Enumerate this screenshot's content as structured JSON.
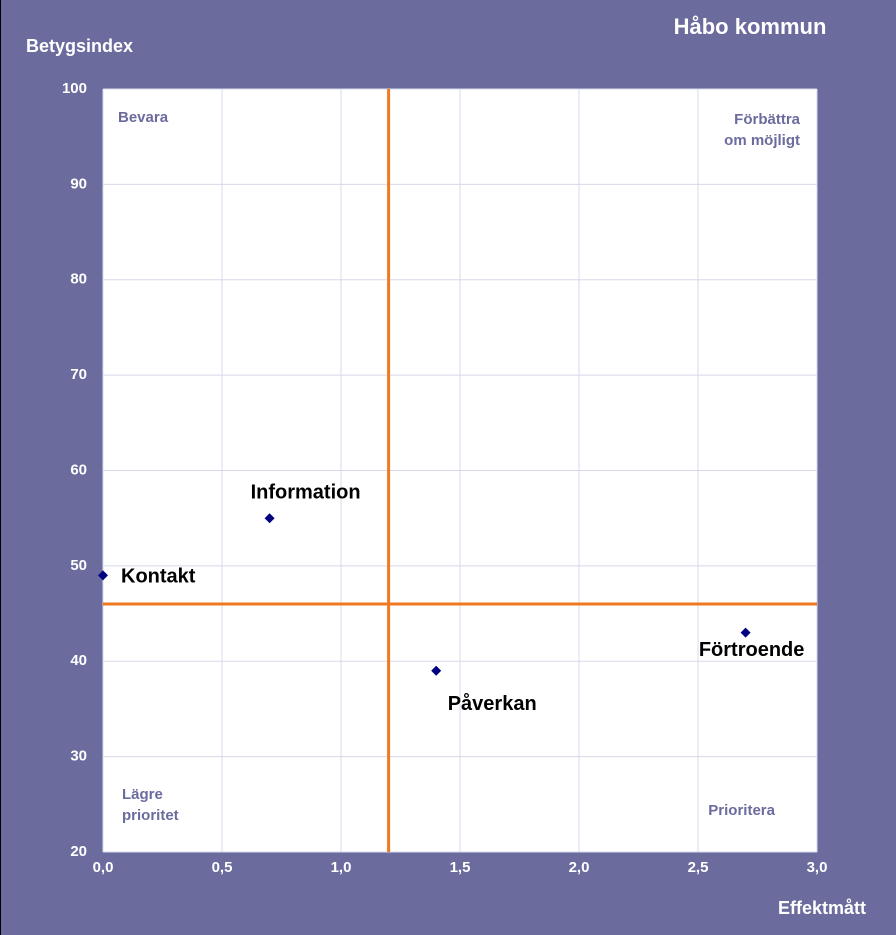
{
  "chart_data": {
    "type": "scatter",
    "title": "Håbo kommun",
    "y_label": "Betygsindex",
    "x_label": "Effektmått",
    "labels": [
      "Kontakt",
      "Information",
      "Påverkan",
      "Förtroende"
    ],
    "x": [
      0,
      0.7,
      1.4,
      2.7
    ],
    "values": [
      49,
      55,
      39,
      43
    ],
    "color": "#000080",
    "xlim": [
      0,
      3
    ],
    "ylim": [
      20,
      100
    ],
    "xticks": [
      {
        "value": 0,
        "label": "0,0"
      },
      {
        "value": 0.5,
        "label": "0,5"
      },
      {
        "value": 1,
        "label": "1,0"
      },
      {
        "value": 1.5,
        "label": "1,5"
      },
      {
        "value": 2,
        "label": "2,0"
      },
      {
        "value": 2.5,
        "label": "2,5"
      },
      {
        "value": 3,
        "label": "3,0"
      }
    ],
    "yticks": [
      20,
      30,
      40,
      50,
      60,
      70,
      80,
      90,
      100
    ],
    "grid": true,
    "reference_lines": {
      "x": 1.2,
      "y": 46,
      "color": "#f07820"
    },
    "quadrant_labels": {
      "top_left": [
        "Bevara"
      ],
      "top_right": [
        "Förbättra",
        "om möjligt"
      ],
      "bottom_left": [
        "Lägre",
        "prioritet"
      ],
      "bottom_right": [
        "Prioritera"
      ]
    }
  }
}
